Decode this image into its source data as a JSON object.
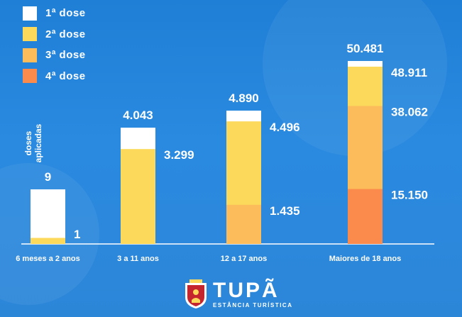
{
  "legend": [
    {
      "label": "1ª dose",
      "color": "#ffffff"
    },
    {
      "label": "2ª dose",
      "color": "#fcd95a"
    },
    {
      "label": "3ª dose",
      "color": "#fdbc5c"
    },
    {
      "label": "4ª dose",
      "color": "#fb8b4c"
    }
  ],
  "logo": {
    "name": "TUPÃ",
    "tagline": "ESTÂNCIA TURÍSTICA"
  },
  "chart_data": {
    "type": "bar",
    "stacked": "overlapping",
    "ylabel": "doses aplicadas",
    "categories": [
      "6 meses a 2 anos",
      "3 a 11 anos",
      "12 a 17 anos",
      "Maiores de 18 anos"
    ],
    "series": [
      {
        "name": "1ª dose",
        "values": [
          9,
          4043,
          4890,
          50481
        ],
        "color": "#ffffff"
      },
      {
        "name": "2ª dose",
        "values": [
          1,
          3299,
          4496,
          48911
        ],
        "color": "#fcd95a"
      },
      {
        "name": "3ª dose",
        "values": [
          null,
          null,
          1435,
          38062
        ],
        "color": "#fdbc5c"
      },
      {
        "name": "4ª dose",
        "values": [
          null,
          null,
          null,
          15150
        ],
        "color": "#fb8b4c"
      }
    ],
    "labels": [
      [
        "9",
        "1",
        null,
        null
      ],
      [
        "4.043",
        "3.299",
        null,
        null
      ],
      [
        "4.890",
        "4.496",
        "1.435",
        null
      ],
      [
        "50.481",
        "48.911",
        "38.062",
        "15.150"
      ]
    ],
    "axis_color": "#ffffff",
    "grid": false
  }
}
